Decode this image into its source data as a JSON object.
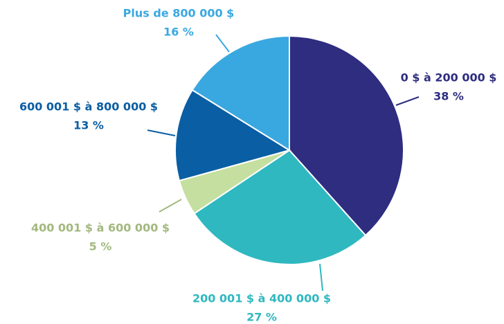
{
  "chart_data": {
    "type": "pie",
    "categories": [
      "0 $ à 200 000 $",
      "200 001 $ à 400 000 $",
      "400 001 $ à 600 000 $",
      "600 001 $ à 800 000 $",
      "Plus de 800 000 $"
    ],
    "values": [
      38,
      27,
      5,
      13,
      16
    ],
    "value_labels": [
      "38 %",
      "27 %",
      "5 %",
      "13 %",
      "16 %"
    ],
    "colors": [
      "#2e2d80",
      "#2fb8c0",
      "#c5dfa0",
      "#0a5ea3",
      "#3aa8e0"
    ],
    "label_colors": [
      "#2e2d80",
      "#2fb8c0",
      "#a3b87e",
      "#0a5ea3",
      "#3aa8e0"
    ]
  }
}
